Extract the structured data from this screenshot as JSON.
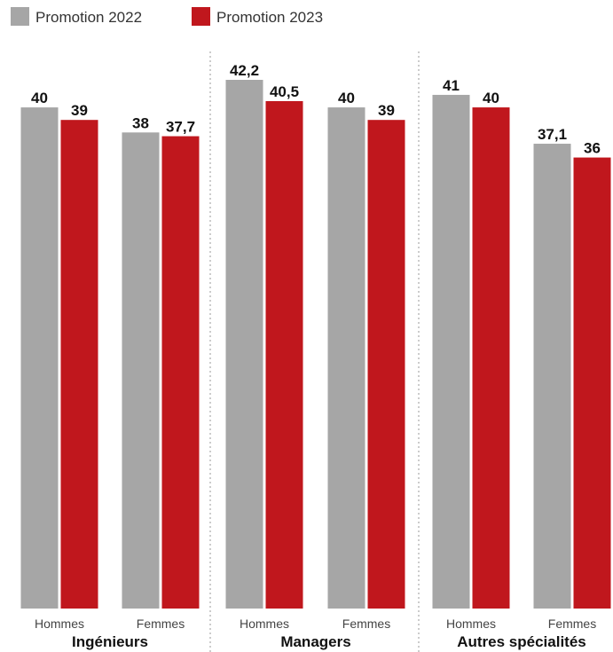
{
  "chart_data": {
    "type": "bar",
    "title": "",
    "xlabel": "",
    "ylabel": "",
    "ylim": [
      0,
      42.2
    ],
    "grid": false,
    "legend_position": "top-left",
    "groups": [
      "Ingénieurs",
      "Managers",
      "Autres spécialités"
    ],
    "categories": [
      "Hommes",
      "Femmes",
      "Hommes",
      "Femmes",
      "Hommes",
      "Femmes"
    ],
    "series": [
      {
        "name": "Promotion 2022",
        "color": "#a6a6a6",
        "values": [
          40,
          38,
          42.2,
          40,
          41,
          37.1
        ],
        "labels": [
          "40",
          "38",
          "42,2",
          "40",
          "41",
          "37,1"
        ]
      },
      {
        "name": "Promotion 2023",
        "color": "#c0171d",
        "values": [
          39,
          37.7,
          40.5,
          39,
          40,
          36
        ],
        "labels": [
          "39",
          "37,7",
          "40,5",
          "39",
          "40",
          "36"
        ]
      }
    ]
  }
}
